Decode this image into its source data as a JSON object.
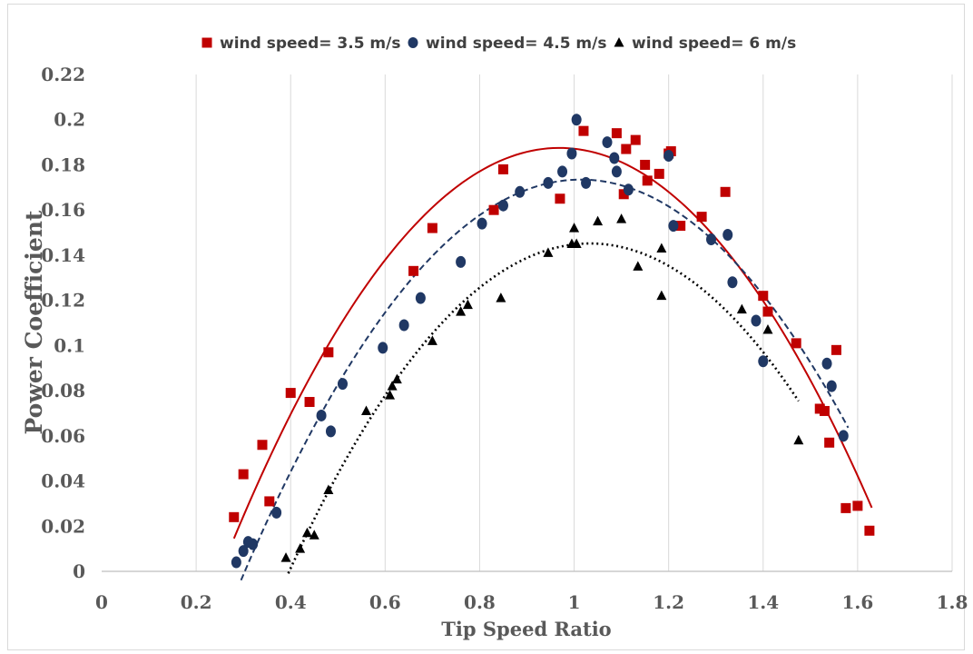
{
  "chart_data": {
    "type": "scatter",
    "title": "",
    "xlabel": "Tip Speed Ratio",
    "ylabel": "Power Coefficient",
    "xlim": [
      0,
      1.8
    ],
    "ylim": [
      0,
      0.22
    ],
    "x_ticks": [
      "0",
      "0.2",
      "0.4",
      "0.6",
      "0.8",
      "1",
      "1.2",
      "1.4",
      "1.6",
      "1.8"
    ],
    "y_ticks": [
      "0",
      "0.02",
      "0.04",
      "0.06",
      "0.08",
      "0.1",
      "0.12",
      "0.14",
      "0.16",
      "0.18",
      "0.2",
      "0.22"
    ],
    "grid": "vertical",
    "legend_position": "top",
    "series": [
      {
        "name": "wind speed= 3.5 m/s",
        "marker": "square",
        "color": "#C00000",
        "trend_style": "solid",
        "trend_range": [
          0.28,
          1.63
        ],
        "points": [
          [
            0.28,
            0.024
          ],
          [
            0.3,
            0.043
          ],
          [
            0.34,
            0.056
          ],
          [
            0.355,
            0.031
          ],
          [
            0.4,
            0.079
          ],
          [
            0.44,
            0.075
          ],
          [
            0.48,
            0.097
          ],
          [
            0.66,
            0.133
          ],
          [
            0.7,
            0.152
          ],
          [
            0.83,
            0.16
          ],
          [
            0.85,
            0.178
          ],
          [
            0.97,
            0.165
          ],
          [
            1.02,
            0.195
          ],
          [
            1.09,
            0.194
          ],
          [
            1.105,
            0.167
          ],
          [
            1.11,
            0.187
          ],
          [
            1.13,
            0.191
          ],
          [
            1.15,
            0.18
          ],
          [
            1.155,
            0.173
          ],
          [
            1.18,
            0.176
          ],
          [
            1.2,
            0.185
          ],
          [
            1.205,
            0.186
          ],
          [
            1.225,
            0.153
          ],
          [
            1.27,
            0.157
          ],
          [
            1.32,
            0.168
          ],
          [
            1.4,
            0.122
          ],
          [
            1.41,
            0.115
          ],
          [
            1.47,
            0.101
          ],
          [
            1.52,
            0.072
          ],
          [
            1.53,
            0.071
          ],
          [
            1.54,
            0.057
          ],
          [
            1.555,
            0.098
          ],
          [
            1.575,
            0.028
          ],
          [
            1.6,
            0.029
          ],
          [
            1.625,
            0.018
          ]
        ]
      },
      {
        "name": "wind speed= 4.5 m/s",
        "marker": "circle",
        "color": "#203864",
        "trend_style": "dashed",
        "trend_range": [
          0.295,
          1.58
        ],
        "points": [
          [
            0.285,
            0.004
          ],
          [
            0.3,
            0.009
          ],
          [
            0.31,
            0.013
          ],
          [
            0.32,
            0.012
          ],
          [
            0.37,
            0.026
          ],
          [
            0.465,
            0.069
          ],
          [
            0.485,
            0.062
          ],
          [
            0.51,
            0.083
          ],
          [
            0.595,
            0.099
          ],
          [
            0.64,
            0.109
          ],
          [
            0.675,
            0.121
          ],
          [
            0.76,
            0.137
          ],
          [
            0.805,
            0.154
          ],
          [
            0.85,
            0.162
          ],
          [
            0.885,
            0.168
          ],
          [
            0.945,
            0.172
          ],
          [
            0.975,
            0.177
          ],
          [
            0.995,
            0.185
          ],
          [
            1.005,
            0.2
          ],
          [
            1.025,
            0.172
          ],
          [
            1.07,
            0.19
          ],
          [
            1.085,
            0.183
          ],
          [
            1.09,
            0.177
          ],
          [
            1.115,
            0.169
          ],
          [
            1.2,
            0.184
          ],
          [
            1.21,
            0.153
          ],
          [
            1.29,
            0.147
          ],
          [
            1.325,
            0.149
          ],
          [
            1.335,
            0.128
          ],
          [
            1.385,
            0.111
          ],
          [
            1.4,
            0.093
          ],
          [
            1.535,
            0.092
          ],
          [
            1.545,
            0.082
          ],
          [
            1.57,
            0.06
          ]
        ]
      },
      {
        "name": "wind speed= 6 m/s",
        "marker": "triangle",
        "color": "#000000",
        "trend_style": "dotted",
        "trend_range": [
          0.395,
          1.475
        ],
        "points": [
          [
            0.39,
            0.006
          ],
          [
            0.42,
            0.01
          ],
          [
            0.435,
            0.017
          ],
          [
            0.45,
            0.016
          ],
          [
            0.48,
            0.036
          ],
          [
            0.56,
            0.071
          ],
          [
            0.61,
            0.078
          ],
          [
            0.615,
            0.082
          ],
          [
            0.625,
            0.085
          ],
          [
            0.7,
            0.102
          ],
          [
            0.76,
            0.115
          ],
          [
            0.775,
            0.118
          ],
          [
            0.845,
            0.121
          ],
          [
            0.945,
            0.141
          ],
          [
            0.995,
            0.145
          ],
          [
            1.0,
            0.152
          ],
          [
            1.005,
            0.145
          ],
          [
            1.05,
            0.155
          ],
          [
            1.1,
            0.156
          ],
          [
            1.135,
            0.135
          ],
          [
            1.185,
            0.143
          ],
          [
            1.185,
            0.122
          ],
          [
            1.355,
            0.116
          ],
          [
            1.41,
            0.107
          ],
          [
            1.475,
            0.058
          ]
        ]
      }
    ]
  }
}
